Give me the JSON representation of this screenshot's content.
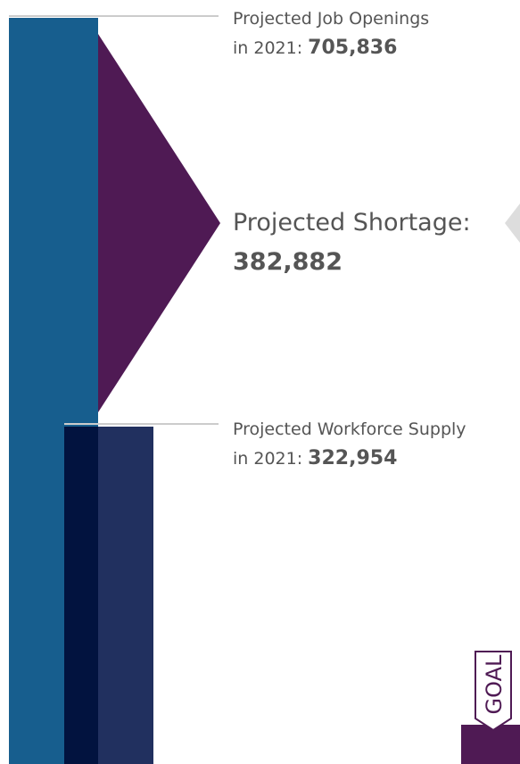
{
  "openings": {
    "label": "Projected Job Openings",
    "prefix": "in 2021:",
    "value": "705,836"
  },
  "shortage": {
    "label": "Projected Shortage:",
    "value": "382,882"
  },
  "supply": {
    "label": "Projected Workforce Supply",
    "prefix": "in 2021:",
    "value": "322,954"
  },
  "badge": "GOAL"
}
